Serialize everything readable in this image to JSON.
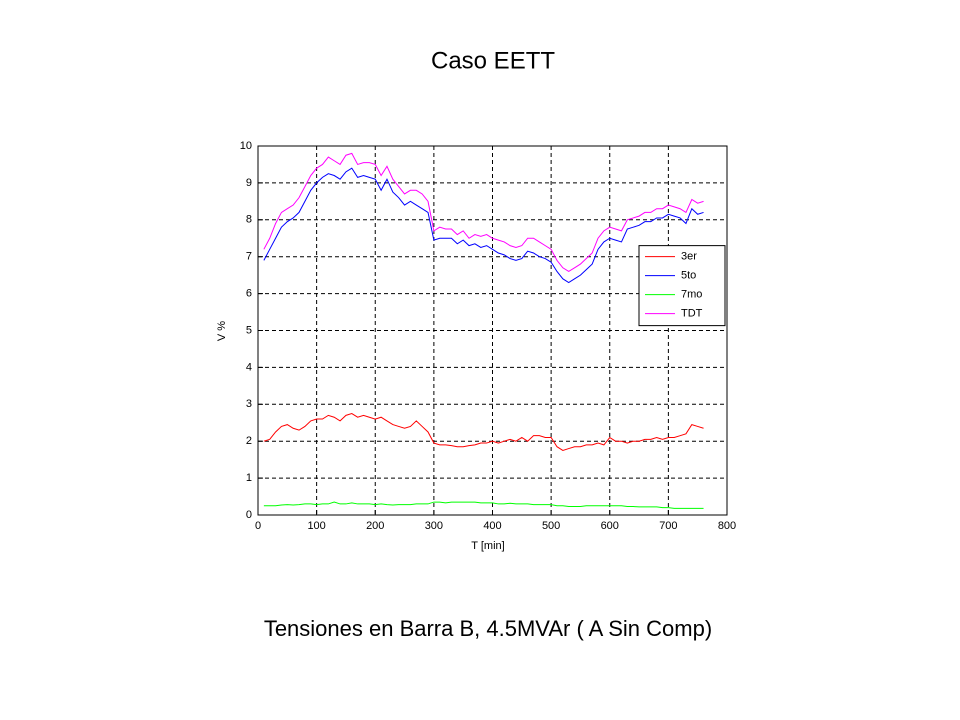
{
  "title": "Caso EETT",
  "caption": "Tensiones en Barra B, 4.5MVAr ( A Sin Comp)",
  "chart_data": {
    "type": "line",
    "x_label": "T [min]",
    "y_label": "V %",
    "xlim": [
      0,
      800
    ],
    "xticks": [
      0,
      100,
      200,
      300,
      400,
      500,
      600,
      700,
      800
    ],
    "ylim": [
      0,
      10
    ],
    "yticks": [
      0,
      1,
      2,
      3,
      4,
      5,
      6,
      7,
      8,
      9,
      10
    ],
    "grid": true,
    "legend": "east",
    "x": [
      10,
      20,
      30,
      40,
      50,
      60,
      70,
      80,
      90,
      100,
      110,
      120,
      130,
      140,
      150,
      160,
      170,
      180,
      190,
      200,
      210,
      220,
      230,
      240,
      250,
      260,
      270,
      280,
      290,
      300,
      310,
      320,
      330,
      340,
      350,
      360,
      370,
      380,
      390,
      400,
      410,
      420,
      430,
      440,
      450,
      460,
      470,
      480,
      490,
      500,
      510,
      520,
      530,
      540,
      550,
      560,
      570,
      580,
      590,
      600,
      610,
      620,
      630,
      640,
      650,
      660,
      670,
      680,
      690,
      700,
      710,
      720,
      730,
      740,
      750,
      760
    ],
    "series": [
      {
        "name": "3er",
        "color": "#ff0000",
        "values": [
          2.0,
          2.05,
          2.25,
          2.4,
          2.45,
          2.35,
          2.3,
          2.4,
          2.55,
          2.6,
          2.6,
          2.7,
          2.65,
          2.55,
          2.7,
          2.75,
          2.65,
          2.7,
          2.65,
          2.6,
          2.65,
          2.55,
          2.45,
          2.4,
          2.35,
          2.4,
          2.55,
          2.4,
          2.25,
          1.95,
          1.9,
          1.9,
          1.88,
          1.85,
          1.85,
          1.88,
          1.9,
          1.95,
          1.95,
          2.0,
          1.95,
          2.0,
          2.05,
          2.0,
          2.1,
          2.0,
          2.15,
          2.15,
          2.1,
          2.1,
          1.85,
          1.75,
          1.8,
          1.85,
          1.85,
          1.9,
          1.9,
          1.95,
          1.9,
          2.1,
          2.0,
          2.0,
          1.95,
          2.0,
          2.0,
          2.05,
          2.05,
          2.1,
          2.05,
          2.1,
          2.1,
          2.15,
          2.2,
          2.45,
          2.4,
          2.35
        ]
      },
      {
        "name": "5to",
        "color": "#0000ff",
        "values": [
          6.9,
          7.2,
          7.5,
          7.8,
          7.95,
          8.05,
          8.2,
          8.5,
          8.8,
          9.0,
          9.15,
          9.25,
          9.2,
          9.1,
          9.3,
          9.4,
          9.15,
          9.2,
          9.15,
          9.1,
          8.8,
          9.1,
          8.75,
          8.6,
          8.4,
          8.5,
          8.4,
          8.3,
          8.2,
          7.45,
          7.5,
          7.5,
          7.5,
          7.35,
          7.45,
          7.3,
          7.35,
          7.25,
          7.3,
          7.2,
          7.1,
          7.05,
          6.95,
          6.9,
          6.95,
          7.15,
          7.1,
          7.0,
          6.95,
          6.85,
          6.6,
          6.4,
          6.3,
          6.4,
          6.5,
          6.65,
          6.8,
          7.2,
          7.4,
          7.5,
          7.45,
          7.4,
          7.75,
          7.8,
          7.85,
          7.95,
          7.95,
          8.05,
          8.05,
          8.15,
          8.1,
          8.05,
          7.9,
          8.3,
          8.15,
          8.2
        ]
      },
      {
        "name": "7mo",
        "color": "#00ff00",
        "values": [
          0.25,
          0.25,
          0.25,
          0.27,
          0.28,
          0.27,
          0.28,
          0.3,
          0.3,
          0.28,
          0.3,
          0.3,
          0.35,
          0.3,
          0.3,
          0.33,
          0.3,
          0.3,
          0.3,
          0.28,
          0.3,
          0.28,
          0.27,
          0.28,
          0.28,
          0.28,
          0.3,
          0.3,
          0.3,
          0.35,
          0.35,
          0.33,
          0.35,
          0.35,
          0.35,
          0.35,
          0.35,
          0.33,
          0.33,
          0.33,
          0.3,
          0.3,
          0.32,
          0.3,
          0.3,
          0.3,
          0.28,
          0.28,
          0.28,
          0.28,
          0.25,
          0.25,
          0.23,
          0.23,
          0.23,
          0.25,
          0.25,
          0.25,
          0.25,
          0.25,
          0.25,
          0.25,
          0.23,
          0.23,
          0.22,
          0.22,
          0.22,
          0.22,
          0.2,
          0.2,
          0.18,
          0.18,
          0.18,
          0.18,
          0.18,
          0.18
        ]
      },
      {
        "name": "TDT",
        "color": "#ff00ff",
        "values": [
          7.2,
          7.5,
          7.9,
          8.2,
          8.3,
          8.4,
          8.6,
          8.9,
          9.2,
          9.4,
          9.5,
          9.7,
          9.6,
          9.5,
          9.75,
          9.8,
          9.5,
          9.55,
          9.55,
          9.5,
          9.2,
          9.45,
          9.1,
          8.9,
          8.7,
          8.8,
          8.8,
          8.7,
          8.5,
          7.7,
          7.8,
          7.75,
          7.75,
          7.6,
          7.7,
          7.5,
          7.6,
          7.55,
          7.6,
          7.5,
          7.45,
          7.4,
          7.3,
          7.25,
          7.3,
          7.5,
          7.5,
          7.4,
          7.3,
          7.2,
          6.9,
          6.7,
          6.6,
          6.7,
          6.8,
          6.95,
          7.1,
          7.5,
          7.7,
          7.8,
          7.75,
          7.7,
          8.0,
          8.05,
          8.1,
          8.2,
          8.2,
          8.3,
          8.3,
          8.4,
          8.35,
          8.3,
          8.2,
          8.55,
          8.45,
          8.5
        ]
      }
    ]
  }
}
